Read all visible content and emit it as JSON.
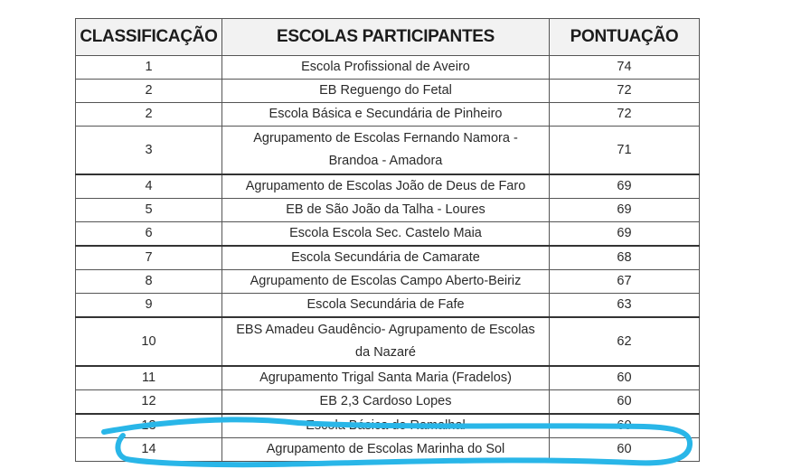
{
  "table": {
    "headers": [
      "CLASSIFICAÇÃO",
      "ESCOLAS PARTICIPANTES",
      "PONTUAÇÃO"
    ],
    "rows": [
      {
        "rank": "1",
        "school": "Escola Profissional de Aveiro",
        "score": "74"
      },
      {
        "rank": "2",
        "school": "EB Reguengo do Fetal",
        "score": "72"
      },
      {
        "rank": "2",
        "school": "Escola Básica e Secundária de Pinheiro",
        "score": "72"
      },
      {
        "rank": "3",
        "school": "Agrupamento de Escolas Fernando Namora - Brandoa - Amadora",
        "score": "71"
      },
      {
        "rank": "4",
        "school": "Agrupamento de Escolas João de Deus de Faro",
        "score": "69"
      },
      {
        "rank": "5",
        "school": "EB de São João da Talha - Loures",
        "score": "69"
      },
      {
        "rank": "6",
        "school": "Escola Escola Sec. Castelo Maia",
        "score": "69"
      },
      {
        "rank": "7",
        "school": "Escola Secundária de Camarate",
        "score": "68"
      },
      {
        "rank": "8",
        "school": "Agrupamento de Escolas Campo Aberto-Beiriz",
        "score": "67"
      },
      {
        "rank": "9",
        "school": "Escola Secundária de Fafe",
        "score": "63"
      },
      {
        "rank": "10",
        "school": "EBS Amadeu Gaudêncio- Agrupamento de Escolas da Nazaré",
        "score": "62"
      },
      {
        "rank": "11",
        "school": "Agrupamento Trigal Santa Maria (Fradelos)",
        "score": "60"
      },
      {
        "rank": "12",
        "school": "EB 2,3 Cardoso Lopes",
        "score": "60"
      },
      {
        "rank": "13",
        "school": "Escola Básica do Ramalhal",
        "score": "60"
      },
      {
        "rank": "14",
        "school": "Agrupamento de Escolas Marinha do Sol",
        "score": "60"
      }
    ]
  },
  "annotation": {
    "color": "#29b6e8",
    "highlighted_rank": "13"
  }
}
